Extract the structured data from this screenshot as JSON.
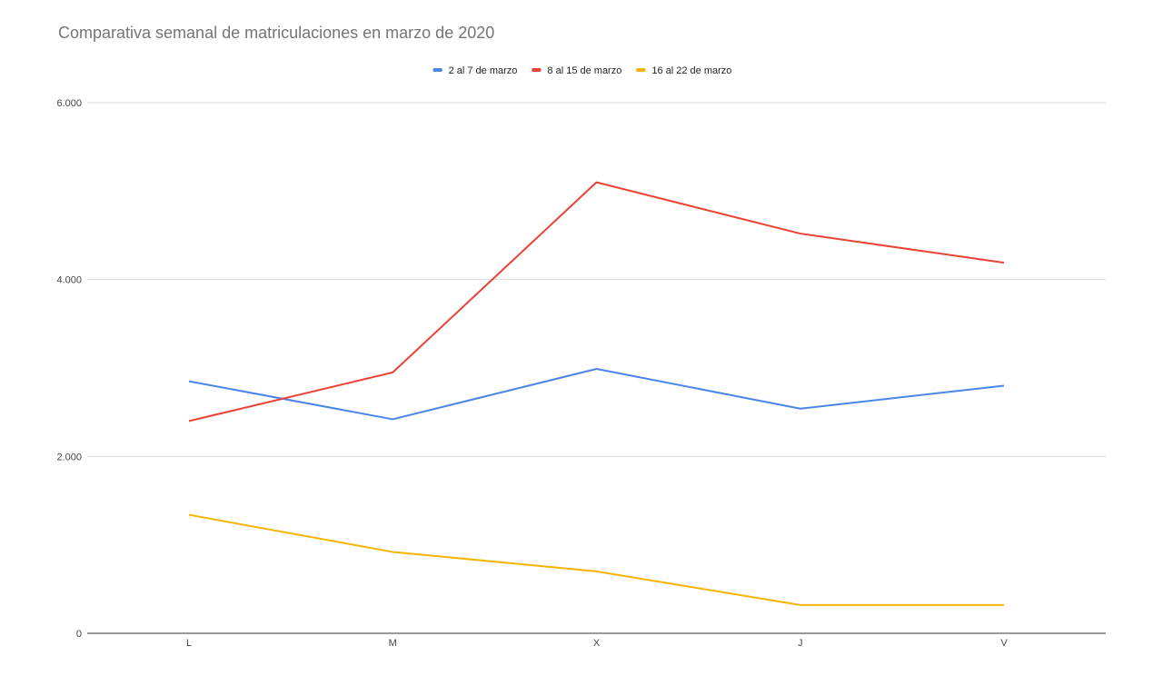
{
  "chart_data": {
    "type": "line",
    "title": "Comparativa semanal de matriculaciones en marzo de 2020",
    "xlabel": "",
    "ylabel": "",
    "categories": [
      "L",
      "M",
      "X",
      "J",
      "V"
    ],
    "ylim": [
      0,
      6000
    ],
    "yticks": [
      0,
      2000,
      4000,
      6000
    ],
    "ytick_labels": [
      "0",
      "2.000",
      "4.000",
      "6.000"
    ],
    "grid": true,
    "legend_position": "top-center",
    "series": [
      {
        "name": "2 al 7 de marzo",
        "color": "#4a86e8",
        "values": [
          2850,
          2420,
          2990,
          2540,
          2800
        ]
      },
      {
        "name": "8 al 15 de marzo",
        "color": "#ea4335",
        "values": [
          2400,
          2950,
          5100,
          4520,
          4190
        ]
      },
      {
        "name": "16 al 22 de marzo",
        "color": "#f4b400",
        "values": [
          1340,
          920,
          700,
          320,
          320
        ]
      }
    ]
  }
}
